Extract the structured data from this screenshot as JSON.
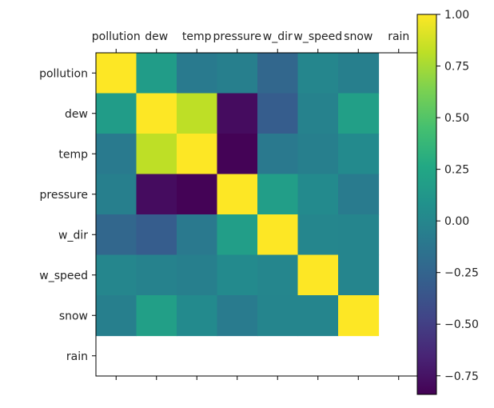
{
  "chart_data": {
    "type": "heatmap",
    "row_labels": [
      "pollution",
      "dew",
      "temp",
      "pressure",
      "w_dir",
      "w_speed",
      "snow",
      "rain"
    ],
    "col_labels": [
      "pollution",
      "dew",
      "temp",
      "pressure",
      "w_dir",
      "w_speed",
      "snow",
      "rain"
    ],
    "values": [
      [
        1.0,
        0.17,
        -0.09,
        -0.05,
        -0.23,
        0.0,
        -0.05,
        null
      ],
      [
        0.17,
        1.0,
        0.82,
        -0.78,
        -0.3,
        -0.03,
        0.19,
        null
      ],
      [
        -0.09,
        0.82,
        1.0,
        -0.83,
        -0.1,
        -0.05,
        0.03,
        null
      ],
      [
        -0.05,
        -0.78,
        -0.83,
        1.0,
        0.18,
        0.03,
        -0.08,
        null
      ],
      [
        -0.23,
        -0.3,
        -0.1,
        0.18,
        1.0,
        0.0,
        -0.01,
        null
      ],
      [
        0.0,
        -0.03,
        -0.05,
        0.03,
        0.0,
        1.0,
        -0.01,
        null
      ],
      [
        -0.05,
        0.19,
        0.03,
        -0.08,
        -0.01,
        -0.01,
        1.0,
        null
      ],
      [
        null,
        null,
        null,
        null,
        null,
        null,
        null,
        null
      ]
    ],
    "colormap": "viridis",
    "vmin": -0.84,
    "vmax": 1.0,
    "colorbar_ticks": [
      1.0,
      0.75,
      0.5,
      0.25,
      0.0,
      -0.25,
      -0.5,
      -0.75
    ],
    "colorbar_tick_labels": [
      "1.00",
      "0.75",
      "0.50",
      "0.25",
      "0.00",
      "−0.25",
      "−0.50",
      "−0.75"
    ],
    "x_axis_position": "top",
    "grid": false,
    "title": "",
    "xlabel": "",
    "ylabel": ""
  }
}
